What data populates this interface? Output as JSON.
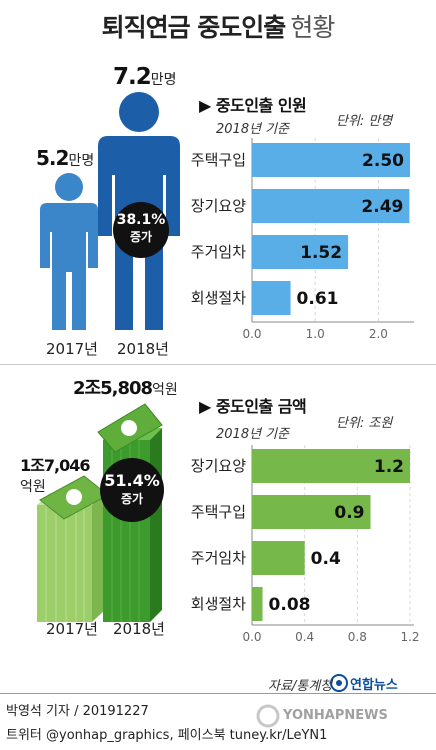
{
  "title": {
    "main": "퇴직연금 중도인출",
    "sub": "현황"
  },
  "people": {
    "y2017": {
      "value": "5.2",
      "unit": "만명",
      "year": "2017년"
    },
    "y2018": {
      "value": "7.2",
      "unit": "만명",
      "year": "2018년"
    },
    "badge": {
      "pct": "38.1%",
      "label": "증가"
    },
    "color_light": "#3a86c8",
    "color_dark": "#1c5fa8"
  },
  "money": {
    "y2017": {
      "value": "1조7,046",
      "unit": "억원",
      "year": "2017년"
    },
    "y2018": {
      "value": "2조5,808",
      "unit": "억원",
      "year": "2018년"
    },
    "badge": {
      "pct": "51.4%",
      "label": "증가"
    },
    "color_light": "#9ccf6a",
    "color_dark": "#3d9a2c"
  },
  "chart_data": [
    {
      "type": "bar",
      "orientation": "horizontal",
      "title": "▶ 중도인출 인원",
      "subtitle": "2018년 기준",
      "unit_note": "단위: 만명",
      "categories": [
        "주택구입",
        "장기요양",
        "주거임차",
        "회생절차"
      ],
      "values": [
        2.5,
        2.49,
        1.52,
        0.61
      ],
      "value_labels": [
        "2.50",
        "2.49",
        "1.52",
        "0.61"
      ],
      "xlim": [
        0,
        2.5
      ],
      "ticks": [
        0,
        1,
        2
      ],
      "tick_labels": [
        "0.0",
        "1.0",
        "2.0"
      ],
      "bar_color": "#5aaee8",
      "grid": true
    },
    {
      "type": "bar",
      "orientation": "horizontal",
      "title": "▶ 중도인출 금액",
      "subtitle": "2018년 기준",
      "unit_note": "단위: 조원",
      "categories": [
        "장기요양",
        "주택구입",
        "주거임차",
        "회생절차"
      ],
      "values": [
        1.2,
        0.9,
        0.4,
        0.08
      ],
      "value_labels": [
        "1.2",
        "0.9",
        "0.4",
        "0.08"
      ],
      "xlim": [
        0,
        1.2
      ],
      "ticks": [
        0,
        0.4,
        0.8,
        1.2
      ],
      "tick_labels": [
        "0.0",
        "0.4",
        "0.8",
        "1.2"
      ],
      "bar_color": "#76b84a",
      "grid": true
    }
  ],
  "source": "자료/통계청",
  "logo": "연합뉴스",
  "footer": {
    "line1": "박영석 기자 /  20191227",
    "line2": "트위터 @yonhap_graphics, 페이스북 tuney.kr/LeYN1"
  },
  "watermark": "YONHAPNEWS"
}
